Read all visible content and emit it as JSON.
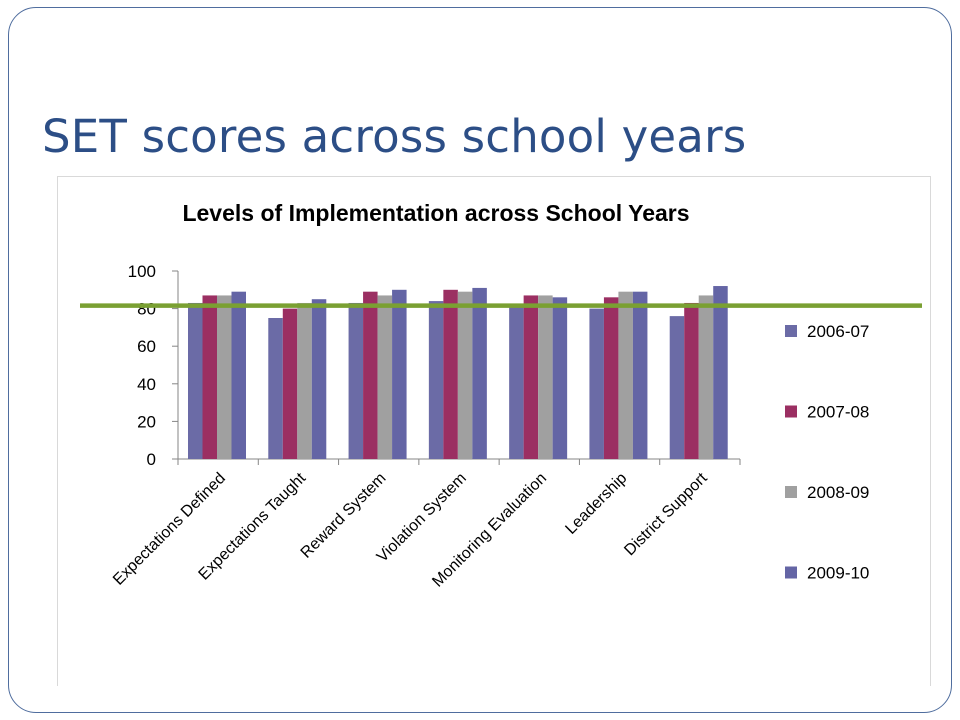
{
  "slide": {
    "title": "SET scores across school years"
  },
  "colors": {
    "frame": "#4f6d9e",
    "title": "#2c4e86",
    "reference_line": "#7aa032"
  },
  "chart_data": {
    "type": "bar",
    "title": "Levels of Implementation across School Years",
    "xlabel": "",
    "ylabel": "",
    "ylim": [
      0,
      100
    ],
    "yticks": [
      0,
      20,
      40,
      60,
      80,
      100
    ],
    "grid": false,
    "legend_position": "right",
    "categories": [
      "Expectations Defined",
      "Expectations Taught",
      "Reward System",
      "Violation System",
      "Monitoring Evaluation",
      "Leadership",
      "District Support"
    ],
    "series": [
      {
        "name": "2006-07",
        "color": "#6b6ba6",
        "values": [
          83,
          75,
          83,
          84,
          81,
          80,
          76
        ]
      },
      {
        "name": "2007-08",
        "color": "#9b2f62",
        "values": [
          87,
          80,
          89,
          90,
          87,
          86,
          83
        ]
      },
      {
        "name": "2008-09",
        "color": "#a0a0a0",
        "values": [
          87,
          83,
          87,
          89,
          87,
          89,
          87
        ]
      },
      {
        "name": "2009-10",
        "color": "#6465a5",
        "values": [
          89,
          85,
          90,
          91,
          86,
          89,
          92
        ]
      }
    ],
    "reference_line": {
      "y": 80,
      "color": "#7aa032"
    }
  }
}
